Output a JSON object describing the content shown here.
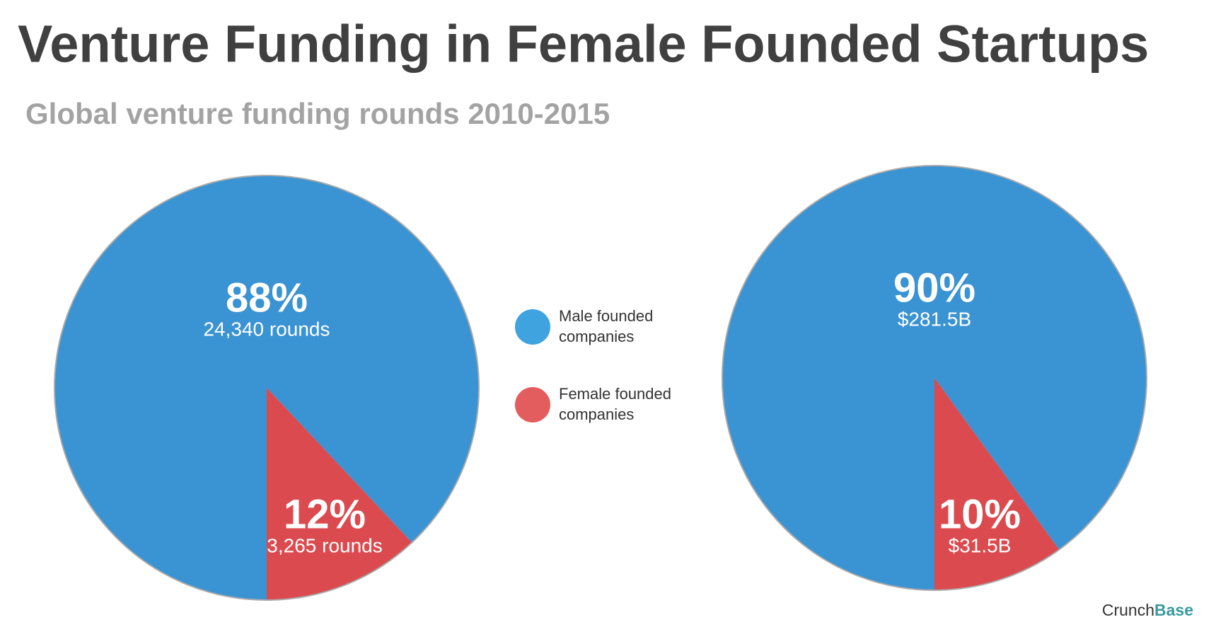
{
  "title": "Venture Funding in Female Founded Startups",
  "subtitle": "Global venture funding rounds 2010-2015",
  "source": {
    "part1": "Crunch",
    "part2": "Base"
  },
  "legend": [
    {
      "name": "Male founded companies",
      "color": "#3ea3df"
    },
    {
      "name": "Female founded companies",
      "color": "#e35d5f"
    }
  ],
  "chart_data": [
    {
      "type": "pie",
      "values": [
        88,
        12
      ],
      "value_labels": [
        "88%",
        "12%"
      ],
      "annotations": [
        "24,340 rounds",
        "3,265 rounds"
      ],
      "colors": [
        "#3a93d2",
        "#db4a4e"
      ]
    },
    {
      "type": "pie",
      "values": [
        90,
        10
      ],
      "value_labels": [
        "90%",
        "10%"
      ],
      "annotations": [
        "$281.5B",
        "$31.5B"
      ],
      "colors": [
        "#3a93d2",
        "#db4a4e"
      ]
    }
  ]
}
